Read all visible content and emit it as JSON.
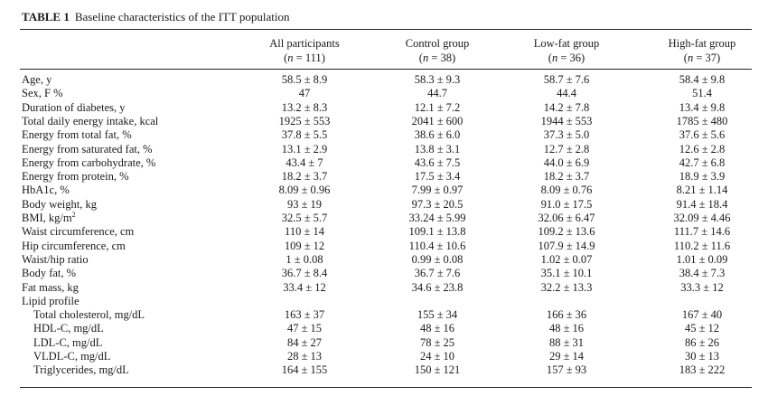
{
  "caption": {
    "label": "TABLE 1",
    "title": "Baseline characteristics of the ITT population"
  },
  "columns": [
    {
      "name": "All participants",
      "n": "111"
    },
    {
      "name": "Control group",
      "n": "38"
    },
    {
      "name": "Low-fat group",
      "n": "36"
    },
    {
      "name": "High-fat group",
      "n": "37"
    }
  ],
  "rows": [
    {
      "label": "Age, y",
      "values": [
        "58.5 ± 8.9",
        "58.3 ± 9.3",
        "58.7 ± 7.6",
        "58.4 ± 9.8"
      ]
    },
    {
      "label": "Sex, F %",
      "values": [
        "47",
        "44.7",
        "44.4",
        "51.4"
      ]
    },
    {
      "label": "Duration of diabetes, y",
      "values": [
        "13.2 ± 8.3",
        "12.1 ± 7.2",
        "14.2 ± 7.8",
        "13.4 ± 9.8"
      ]
    },
    {
      "label": "Total daily energy intake, kcal",
      "values": [
        "1925 ± 553",
        "2041 ± 600",
        "1944 ± 553",
        "1785 ± 480"
      ]
    },
    {
      "label": "Energy from total fat, %",
      "values": [
        "37.8 ± 5.5",
        "38.6 ± 6.0",
        "37.3 ± 5.0",
        "37.6 ± 5.6"
      ]
    },
    {
      "label": "Energy from saturated fat, %",
      "values": [
        "13.1 ± 2.9",
        "13.8 ± 3.1",
        "12.7 ± 2.8",
        "12.6 ± 2.8"
      ]
    },
    {
      "label": "Energy from carbohydrate, %",
      "values": [
        "43.4 ± 7",
        "43.6 ± 7.5",
        "44.0 ± 6.9",
        "42.7 ± 6.8"
      ]
    },
    {
      "label": "Energy from protein, %",
      "values": [
        "18.2 ± 3.7",
        "17.5 ± 3.4",
        "18.2 ± 3.7",
        "18.9 ± 3.9"
      ]
    },
    {
      "label": "HbA1c, %",
      "values": [
        "8.09 ± 0.96",
        "7.99 ± 0.97",
        "8.09 ± 0.76",
        "8.21 ± 1.14"
      ]
    },
    {
      "label": "Body weight, kg",
      "values": [
        "93 ± 19",
        "97.3 ± 20.5",
        "91.0 ± 17.5",
        "91.4 ± 18.4"
      ]
    },
    {
      "label": "BMI, kg/m",
      "sup": "2",
      "values": [
        "32.5 ± 5.7",
        "33.24 ± 5.99",
        "32.06 ± 6.47",
        "32.09 ± 4.46"
      ]
    },
    {
      "label": "Waist circumference, cm",
      "values": [
        "110 ± 14",
        "109.1 ± 13.8",
        "109.2 ± 13.6",
        "111.7 ± 14.6"
      ]
    },
    {
      "label": "Hip circumference, cm",
      "values": [
        "109 ± 12",
        "110.4 ± 10.6",
        "107.9 ± 14.9",
        "110.2 ± 11.6"
      ]
    },
    {
      "label": "Waist/hip ratio",
      "values": [
        "1 ± 0.08",
        "0.99 ± 0.08",
        "1.02 ± 0.07",
        "1.01 ± 0.09"
      ]
    },
    {
      "label": "Body fat, %",
      "values": [
        "36.7 ± 8.4",
        "36.7 ± 7.6",
        "35.1 ± 10.1",
        "38.4 ± 7.3"
      ]
    },
    {
      "label": "Fat mass, kg",
      "values": [
        "33.4 ± 12",
        "34.6 ± 23.8",
        "32.2 ± 13.3",
        "33.3 ± 12"
      ]
    },
    {
      "label": "Lipid profile",
      "values": [
        "",
        "",
        "",
        ""
      ]
    },
    {
      "label": "Total cholesterol, mg/dL",
      "indent": true,
      "values": [
        "163 ± 37",
        "155 ± 34",
        "166 ± 36",
        "167 ± 40"
      ]
    },
    {
      "label": "HDL-C, mg/dL",
      "indent": true,
      "values": [
        "47 ± 15",
        "48 ± 16",
        "48 ± 16",
        "45 ± 12"
      ]
    },
    {
      "label": "LDL-C, mg/dL",
      "indent": true,
      "values": [
        "84 ± 27",
        "78 ± 25",
        "88 ± 31",
        "86 ± 26"
      ]
    },
    {
      "label": "VLDL-C, mg/dL",
      "indent": true,
      "values": [
        "28 ± 13",
        "24 ± 10",
        "29 ± 14",
        "30 ± 13"
      ]
    },
    {
      "label": "Triglycerides, mg/dL",
      "indent": true,
      "values": [
        "164 ± 155",
        "150 ± 121",
        "157 ± 93",
        "183 ± 222"
      ]
    }
  ]
}
